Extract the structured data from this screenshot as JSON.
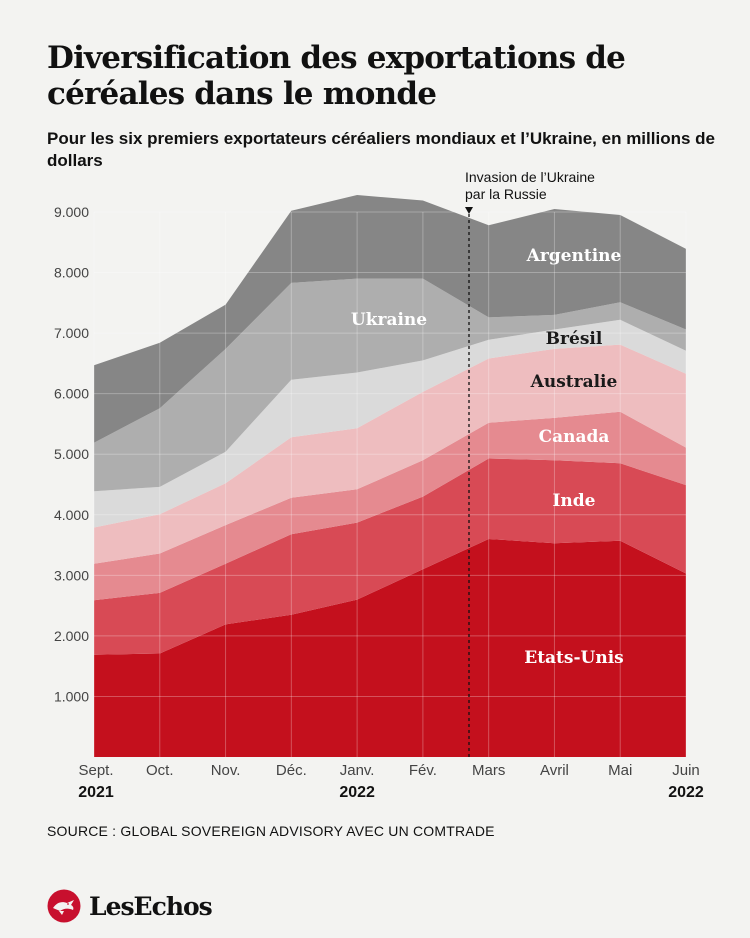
{
  "title": "Diversification des exportations de céréales dans le monde",
  "subtitle": "Pour les six premiers exportateurs céréaliers mondiaux et l’Ukraine, en millions de dollars",
  "source": "SOURCE : GLOBAL SOVEREIGN ADVISORY AVEC UN COMTRADE",
  "brand": {
    "name": "LesEchos",
    "icon": "les-echos-bird-logo"
  },
  "colors": {
    "background": "#f3f3f1",
    "etats_unis": "#c4101d",
    "inde": "#d84a55",
    "canada": "#e58a90",
    "australie": "#eebdbf",
    "bresil": "#dadada",
    "ukraine": "#aeaeae",
    "argentine": "#868686",
    "brand_red": "#c8102e"
  },
  "chart_data": {
    "type": "area",
    "stacked": true,
    "categories": [
      "Sept.",
      "Oct.",
      "Nov.",
      "Déc.",
      "Janv.",
      "Fév.",
      "Mars",
      "Avril",
      "Mai",
      "Juin"
    ],
    "x_year_labels": [
      "2021",
      "",
      "",
      "",
      "2022",
      "",
      "",
      "",
      "",
      "2022"
    ],
    "ylim": [
      0,
      9000
    ],
    "y_ticks": [
      1000,
      2000,
      3000,
      4000,
      5000,
      6000,
      7000,
      8000,
      9000
    ],
    "y_tick_labels": [
      "1.000",
      "2.000",
      "3.000",
      "4.000",
      "5.000",
      "6.000",
      "7.000",
      "8.000",
      "9.000"
    ],
    "grid": true,
    "series": [
      {
        "name": "Etats-Unis",
        "values": [
          1690,
          1710,
          2190,
          2350,
          2600,
          3100,
          3600,
          3530,
          3570,
          3030
        ]
      },
      {
        "name": "Inde",
        "values": [
          900,
          1000,
          1000,
          1330,
          1270,
          1200,
          1330,
          1370,
          1280,
          1460
        ]
      },
      {
        "name": "Canada",
        "values": [
          600,
          650,
          640,
          600,
          550,
          600,
          590,
          700,
          850,
          620
        ]
      },
      {
        "name": "Australie",
        "values": [
          600,
          650,
          690,
          1000,
          1010,
          1130,
          1060,
          1140,
          1110,
          1220
        ]
      },
      {
        "name": "Brésil",
        "values": [
          600,
          450,
          520,
          950,
          920,
          520,
          310,
          320,
          410,
          380
        ]
      },
      {
        "name": "Ukraine",
        "values": [
          800,
          1300,
          1700,
          1600,
          1550,
          1350,
          370,
          240,
          290,
          350
        ]
      },
      {
        "name": "Argentine",
        "values": [
          1280,
          1080,
          730,
          1190,
          1380,
          1290,
          1520,
          1750,
          1440,
          1330
        ]
      }
    ],
    "annotation": {
      "lines": [
        "Invasion de l’Ukraine",
        "par la Russie"
      ],
      "between": [
        "Fév.",
        "Mars"
      ]
    }
  }
}
